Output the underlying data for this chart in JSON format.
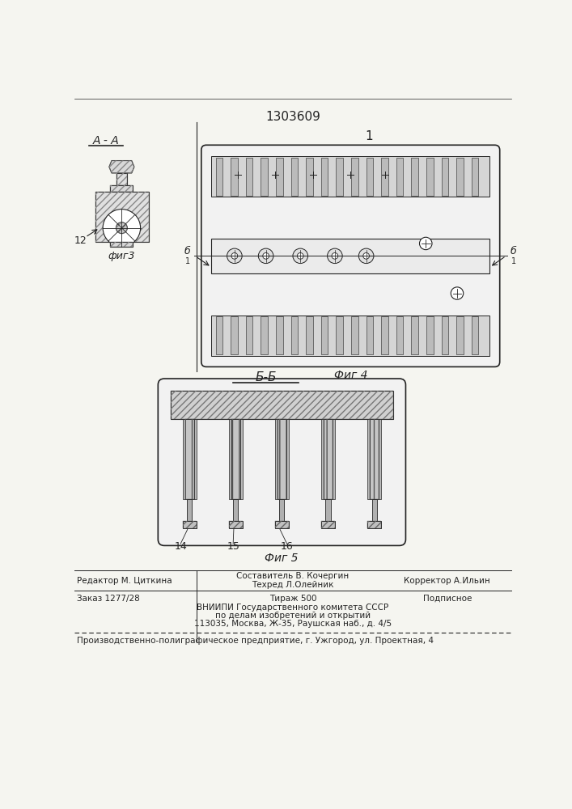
{
  "patent_number": "1303609",
  "background_color": "#f5f5f0",
  "line_color": "#222222",
  "fig3_label": "А - А",
  "fig4_label": "Фиг 4",
  "fig5_label": "Фиг 5",
  "section_b_label": "Б-Б",
  "label_12": "12",
  "label_14": "14",
  "label_15": "15",
  "label_16": "16",
  "label_1": "1",
  "fig3_caption": "фиг3",
  "editor_line": "Редактор М. Циткина",
  "compiler_line": "Составитель В. Кочергин",
  "techred_line": "Техред Л.Олейник",
  "corrector_line": "Корректор А.Ильин",
  "order_line": "Заказ 1277/28",
  "tirazh_line": "Тираж 500",
  "podpisnoe_line": "Подписное",
  "vniipи_line": "ВНИИПИ Государственного комитета СССР",
  "po_delam_line": "по делам изобретений и открытий",
  "address_line": "113035, Москва, Ж-35, Раушская наб., д. 4/5",
  "factory_line": "Производственно-полиграфическое предприятие, г. Ужгород, ул. Проектная, 4"
}
